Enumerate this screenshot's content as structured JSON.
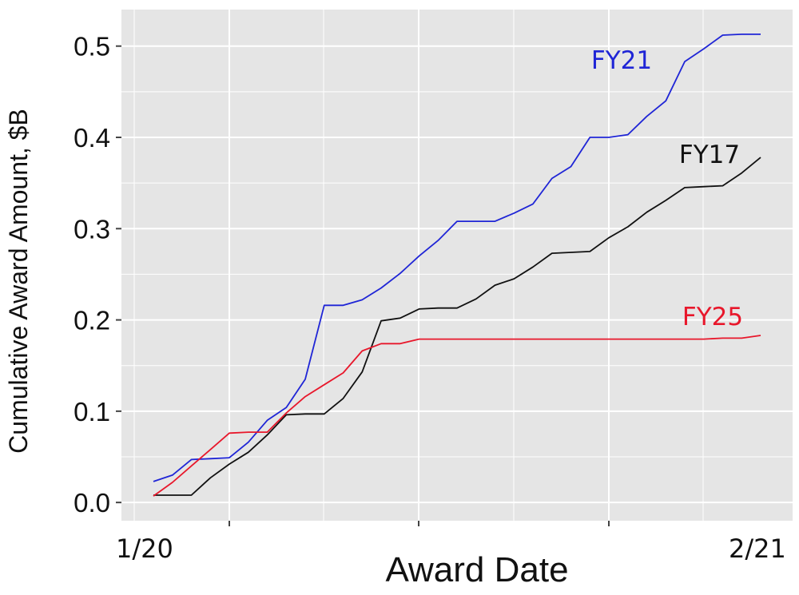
{
  "chart_data": {
    "type": "line",
    "title": "",
    "xlabel": "Award Date",
    "ylabel": "Cumulative Award Amount, $B",
    "x_start_label": "1/20",
    "x_end_label": "2/21",
    "ylim": [
      -0.02,
      0.54
    ],
    "yticks": [
      0.0,
      0.1,
      0.2,
      0.3,
      0.4,
      0.5
    ],
    "ytick_labels": [
      "0.0",
      "0.1",
      "0.2",
      "0.3",
      "0.4",
      "0.5"
    ],
    "grid": true,
    "legend": "direct labels at line ends",
    "series": [
      {
        "name": "FY21",
        "color": "#1f25d6",
        "points": [
          [
            "1/20",
            0.023
          ],
          [
            "1/21",
            0.03
          ],
          [
            "1/22",
            0.047
          ],
          [
            "1/23",
            0.048
          ],
          [
            "1/24",
            0.049
          ],
          [
            "1/25",
            0.066
          ],
          [
            "1/26",
            0.09
          ],
          [
            "1/27",
            0.104
          ],
          [
            "1/28",
            0.135
          ],
          [
            "1/29",
            0.216
          ],
          [
            "1/30",
            0.216
          ],
          [
            "1/31",
            0.222
          ],
          [
            "2/1",
            0.235
          ],
          [
            "2/2",
            0.251
          ],
          [
            "2/3",
            0.27
          ],
          [
            "2/4",
            0.287
          ],
          [
            "2/5",
            0.308
          ],
          [
            "2/6",
            0.308
          ],
          [
            "2/7",
            0.308
          ],
          [
            "2/8",
            0.317
          ],
          [
            "2/9",
            0.327
          ],
          [
            "2/10",
            0.355
          ],
          [
            "2/11",
            0.368
          ],
          [
            "2/12",
            0.4
          ],
          [
            "2/13",
            0.4
          ],
          [
            "2/14",
            0.403
          ],
          [
            "2/15",
            0.423
          ],
          [
            "2/16",
            0.44
          ],
          [
            "2/17",
            0.483
          ],
          [
            "2/18",
            0.497
          ],
          [
            "2/19",
            0.512
          ],
          [
            "2/20",
            0.513
          ],
          [
            "2/21",
            0.513
          ]
        ]
      },
      {
        "name": "FY17",
        "color": "#111111",
        "points": [
          [
            "1/20",
            0.008
          ],
          [
            "1/21",
            0.008
          ],
          [
            "1/22",
            0.008
          ],
          [
            "1/23",
            0.027
          ],
          [
            "1/24",
            0.042
          ],
          [
            "1/25",
            0.055
          ],
          [
            "1/26",
            0.074
          ],
          [
            "1/27",
            0.096
          ],
          [
            "1/28",
            0.097
          ],
          [
            "1/29",
            0.097
          ],
          [
            "1/30",
            0.114
          ],
          [
            "1/31",
            0.143
          ],
          [
            "2/1",
            0.199
          ],
          [
            "2/2",
            0.202
          ],
          [
            "2/3",
            0.212
          ],
          [
            "2/4",
            0.213
          ],
          [
            "2/5",
            0.213
          ],
          [
            "2/6",
            0.223
          ],
          [
            "2/7",
            0.238
          ],
          [
            "2/8",
            0.245
          ],
          [
            "2/9",
            0.258
          ],
          [
            "2/10",
            0.273
          ],
          [
            "2/11",
            0.274
          ],
          [
            "2/12",
            0.275
          ],
          [
            "2/13",
            0.29
          ],
          [
            "2/14",
            0.302
          ],
          [
            "2/15",
            0.318
          ],
          [
            "2/16",
            0.331
          ],
          [
            "2/17",
            0.345
          ],
          [
            "2/18",
            0.346
          ],
          [
            "2/19",
            0.347
          ],
          [
            "2/20",
            0.361
          ],
          [
            "2/21",
            0.378
          ]
        ]
      },
      {
        "name": "FY25",
        "color": "#e8172b",
        "points": [
          [
            "1/20",
            0.007
          ],
          [
            "1/21",
            0.022
          ],
          [
            "1/22",
            0.04
          ],
          [
            "1/23",
            0.058
          ],
          [
            "1/24",
            0.076
          ],
          [
            "1/25",
            0.077
          ],
          [
            "1/26",
            0.077
          ],
          [
            "1/27",
            0.098
          ],
          [
            "1/28",
            0.116
          ],
          [
            "1/29",
            0.129
          ],
          [
            "1/30",
            0.142
          ],
          [
            "1/31",
            0.166
          ],
          [
            "2/1",
            0.174
          ],
          [
            "2/2",
            0.174
          ],
          [
            "2/3",
            0.179
          ],
          [
            "2/4",
            0.179
          ],
          [
            "2/5",
            0.179
          ],
          [
            "2/6",
            0.179
          ],
          [
            "2/7",
            0.179
          ],
          [
            "2/8",
            0.179
          ],
          [
            "2/9",
            0.179
          ],
          [
            "2/10",
            0.179
          ],
          [
            "2/11",
            0.179
          ],
          [
            "2/12",
            0.179
          ],
          [
            "2/13",
            0.179
          ],
          [
            "2/14",
            0.179
          ],
          [
            "2/15",
            0.179
          ],
          [
            "2/16",
            0.179
          ],
          [
            "2/17",
            0.179
          ],
          [
            "2/18",
            0.179
          ],
          [
            "2/19",
            0.18
          ],
          [
            "2/20",
            0.18
          ],
          [
            "2/21",
            0.183
          ]
        ]
      }
    ]
  },
  "colors": {
    "panel_background": "#e5e5e5",
    "gridline": "#ffffff",
    "axis_tick": "#444444"
  }
}
